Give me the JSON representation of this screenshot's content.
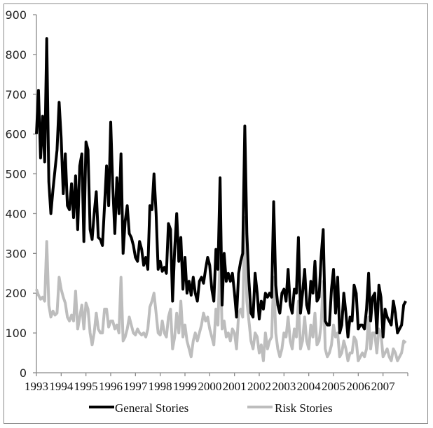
{
  "chart_data": {
    "type": "line",
    "title": "",
    "xlabel": "",
    "ylabel": "",
    "ylim": [
      0,
      900
    ],
    "yticks": [
      0,
      100,
      200,
      300,
      400,
      500,
      600,
      700,
      800,
      900
    ],
    "xtick_labels": [
      "1993",
      "1994",
      "1995",
      "1996",
      "1997",
      "1998",
      "1999",
      "2000",
      "2001",
      "2002",
      "2003",
      "2004",
      "2005",
      "2006",
      "2007"
    ],
    "x_resolution": "monthly",
    "legend_position": "bottom",
    "grid": false,
    "series": [
      {
        "name": "General Stories",
        "color": "#000000",
        "values": [
          600,
          710,
          540,
          645,
          530,
          840,
          480,
          400,
          460,
          510,
          560,
          680,
          590,
          450,
          550,
          420,
          410,
          475,
          390,
          495,
          360,
          520,
          550,
          330,
          580,
          560,
          360,
          335,
          400,
          455,
          340,
          335,
          320,
          420,
          520,
          420,
          630,
          470,
          350,
          490,
          400,
          550,
          300,
          380,
          420,
          350,
          340,
          320,
          290,
          280,
          330,
          310,
          270,
          290,
          260,
          420,
          410,
          500,
          400,
          260,
          280,
          255,
          265,
          250,
          375,
          360,
          180,
          310,
          400,
          280,
          340,
          210,
          290,
          200,
          230,
          195,
          240,
          200,
          180,
          230,
          240,
          225,
          260,
          290,
          270,
          210,
          180,
          310,
          260,
          490,
          170,
          300,
          230,
          250,
          230,
          250,
          200,
          140,
          250,
          280,
          300,
          620,
          350,
          230,
          150,
          140,
          250,
          200,
          135,
          180,
          160,
          200,
          190,
          200,
          190,
          430,
          220,
          170,
          150,
          200,
          210,
          180,
          260,
          170,
          150,
          210,
          200,
          340,
          150,
          200,
          260,
          170,
          150,
          230,
          200,
          280,
          180,
          190,
          290,
          360,
          130,
          120,
          120,
          210,
          260,
          150,
          240,
          100,
          120,
          200,
          150,
          90,
          140,
          130,
          220,
          200,
          110,
          120,
          120,
          110,
          160,
          250,
          130,
          190,
          200,
          100,
          220,
          190,
          90,
          160,
          140,
          130,
          120,
          180,
          150,
          100,
          110,
          120,
          170,
          180
        ]
      },
      {
        "name": "Risk Stories",
        "color": "#bdbdbd",
        "values": [
          210,
          195,
          185,
          190,
          180,
          330,
          170,
          140,
          155,
          145,
          150,
          240,
          210,
          190,
          175,
          140,
          130,
          145,
          130,
          205,
          110,
          140,
          170,
          110,
          175,
          160,
          100,
          70,
          100,
          150,
          110,
          100,
          100,
          160,
          160,
          115,
          130,
          130,
          110,
          120,
          100,
          240,
          80,
          90,
          110,
          140,
          120,
          100,
          95,
          110,
          100,
          95,
          100,
          90,
          110,
          165,
          180,
          200,
          150,
          100,
          95,
          130,
          100,
          90,
          140,
          160,
          60,
          90,
          150,
          100,
          180,
          90,
          120,
          80,
          60,
          40,
          80,
          100,
          80,
          100,
          120,
          150,
          130,
          140,
          110,
          90,
          70,
          160,
          120,
          300,
          110,
          130,
          90,
          100,
          80,
          110,
          100,
          60,
          150,
          160,
          140,
          390,
          180,
          130,
          80,
          60,
          100,
          90,
          50,
          70,
          30,
          100,
          60,
          80,
          90,
          240,
          100,
          60,
          40,
          60,
          100,
          90,
          140,
          80,
          60,
          110,
          90,
          180,
          60,
          80,
          140,
          80,
          60,
          120,
          90,
          150,
          70,
          80,
          120,
          230,
          60,
          40,
          50,
          70,
          120,
          90,
          100,
          40,
          50,
          80,
          60,
          30,
          50,
          50,
          90,
          80,
          30,
          40,
          50,
          40,
          60,
          140,
          60,
          100,
          100,
          50,
          110,
          100,
          40,
          50,
          60,
          40,
          30,
          60,
          50,
          30,
          40,
          50,
          80,
          75
        ]
      }
    ]
  },
  "legend": {
    "general_label": "General Stories",
    "risk_label": "Risk Stories"
  }
}
